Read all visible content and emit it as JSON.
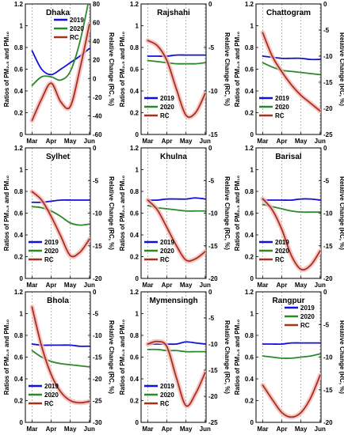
{
  "figure": {
    "left_axis_label": "Ratios of PM₂.₅ and PM₁₀",
    "right_axis_label": "Relative Change (RC, %)",
    "x_ticks": [
      "Mar",
      "Apr",
      "May",
      "Jun"
    ],
    "colors": {
      "2019": "#1010d8",
      "2020": "#2a8a2a",
      "RC": "#a83218",
      "RC_band": "#f4b8bc",
      "grid": "#9a9a9a"
    }
  },
  "chart_data": [
    {
      "title": "Dhaka",
      "type": "line",
      "categories": [
        "Mar",
        "Apr",
        "May",
        "Jun"
      ],
      "ylim_left": [
        0,
        1.2
      ],
      "yticks_left": [
        0,
        0.2,
        0.4,
        0.6,
        0.8,
        1,
        1.2
      ],
      "ylim_right": [
        -60,
        80
      ],
      "yticks_right": [
        -60,
        -40,
        -20,
        0,
        20,
        40,
        60,
        80
      ],
      "legend": "top-right",
      "series": [
        {
          "name": "2019",
          "axis": "left",
          "x": [
            0,
            0.5,
            1,
            1.5,
            2,
            2.5,
            3
          ],
          "y": [
            0.77,
            0.6,
            0.55,
            0.6,
            0.66,
            0.72,
            0.79
          ]
        },
        {
          "name": "2020",
          "axis": "left",
          "x": [
            0,
            0.5,
            1,
            1.5,
            2,
            2.5,
            3
          ],
          "y": [
            0.45,
            0.53,
            0.53,
            0.5,
            0.58,
            0.85,
            1.26
          ]
        },
        {
          "name": "RC",
          "axis": "right",
          "x": [
            0,
            0.5,
            1,
            1.5,
            2,
            2.5,
            3
          ],
          "y": [
            -45,
            -22,
            -5,
            -25,
            -30,
            10,
            58
          ]
        }
      ]
    },
    {
      "title": "Rajshahi",
      "type": "line",
      "categories": [
        "Mar",
        "Apr",
        "May",
        "Jun"
      ],
      "ylim_left": [
        0,
        1.2
      ],
      "yticks_left": [
        0,
        0.2,
        0.4,
        0.6,
        0.8,
        1,
        1.2
      ],
      "ylim_right": [
        -15,
        0
      ],
      "yticks_right": [
        -15,
        -10,
        -5,
        0
      ],
      "legend": "bottom-left",
      "series": [
        {
          "name": "2019",
          "axis": "left",
          "x": [
            0,
            0.5,
            1,
            1.5,
            2,
            2.5,
            3
          ],
          "y": [
            0.72,
            0.72,
            0.72,
            0.73,
            0.73,
            0.73,
            0.73
          ]
        },
        {
          "name": "2020",
          "axis": "left",
          "x": [
            0,
            0.5,
            1,
            1.5,
            2,
            2.5,
            3
          ],
          "y": [
            0.68,
            0.67,
            0.66,
            0.65,
            0.65,
            0.65,
            0.66
          ]
        },
        {
          "name": "RC",
          "axis": "right",
          "x": [
            0,
            0.5,
            1,
            1.5,
            2,
            2.5,
            3
          ],
          "y": [
            -4.2,
            -4.8,
            -6.5,
            -9.8,
            -12.8,
            -12.5,
            -10.3
          ]
        }
      ]
    },
    {
      "title": "Chattogram",
      "type": "line",
      "categories": [
        "Mar",
        "Apr",
        "May",
        "Jun"
      ],
      "ylim_left": [
        0,
        1.2
      ],
      "yticks_left": [
        0,
        0.2,
        0.4,
        0.6,
        0.8,
        1,
        1.2
      ],
      "ylim_right": [
        -25,
        0
      ],
      "yticks_right": [
        -25,
        -20,
        -15,
        -10,
        -5,
        0
      ],
      "legend": "bottom-left",
      "series": [
        {
          "name": "2019",
          "axis": "left",
          "x": [
            0,
            0.5,
            1,
            1.5,
            2,
            2.5,
            3
          ],
          "y": [
            0.72,
            0.71,
            0.7,
            0.7,
            0.7,
            0.69,
            0.69
          ]
        },
        {
          "name": "2020",
          "axis": "left",
          "x": [
            0,
            0.5,
            1,
            1.5,
            2,
            2.5,
            3
          ],
          "y": [
            0.66,
            0.62,
            0.59,
            0.58,
            0.57,
            0.56,
            0.55
          ]
        },
        {
          "name": "RC",
          "axis": "right",
          "x": [
            0,
            0.5,
            1,
            1.5,
            2,
            2.5,
            3
          ],
          "y": [
            -5.5,
            -10,
            -13,
            -15.5,
            -17.5,
            -19,
            -20.5
          ]
        }
      ]
    },
    {
      "title": "Sylhet",
      "type": "line",
      "categories": [
        "Mar",
        "Apr",
        "May",
        "Jun"
      ],
      "ylim_left": [
        0,
        1.2
      ],
      "yticks_left": [
        0,
        0.2,
        0.4,
        0.6,
        0.8,
        1,
        1.2
      ],
      "ylim_right": [
        -20,
        0
      ],
      "yticks_right": [
        -20,
        -15,
        -10,
        -5,
        0
      ],
      "legend": "bottom-left",
      "series": [
        {
          "name": "2019",
          "axis": "left",
          "x": [
            0,
            0.5,
            1,
            1.5,
            2,
            2.5,
            3
          ],
          "y": [
            0.7,
            0.7,
            0.71,
            0.72,
            0.72,
            0.72,
            0.72
          ]
        },
        {
          "name": "2020",
          "axis": "left",
          "x": [
            0,
            0.5,
            1,
            1.5,
            2,
            2.5,
            3
          ],
          "y": [
            0.66,
            0.65,
            0.62,
            0.57,
            0.51,
            0.49,
            0.5
          ]
        },
        {
          "name": "RC",
          "axis": "right",
          "x": [
            0,
            0.5,
            1,
            1.5,
            2,
            2.5,
            3
          ],
          "y": [
            -6.7,
            -8,
            -10.5,
            -13.5,
            -16.5,
            -16,
            -14
          ]
        }
      ]
    },
    {
      "title": "Khulna",
      "type": "line",
      "categories": [
        "Mar",
        "Apr",
        "May",
        "Jun"
      ],
      "ylim_left": [
        0,
        1.2
      ],
      "yticks_left": [
        0,
        0.2,
        0.4,
        0.6,
        0.8,
        1,
        1.2
      ],
      "ylim_right": [
        -20,
        0
      ],
      "yticks_right": [
        -20,
        -15,
        -10,
        -5,
        0
      ],
      "legend": "bottom-left",
      "series": [
        {
          "name": "2019",
          "axis": "left",
          "x": [
            0,
            0.5,
            1,
            1.5,
            2,
            2.5,
            3
          ],
          "y": [
            0.72,
            0.72,
            0.73,
            0.73,
            0.73,
            0.74,
            0.73
          ]
        },
        {
          "name": "2020",
          "axis": "left",
          "x": [
            0,
            0.5,
            1,
            1.5,
            2,
            2.5,
            3
          ],
          "y": [
            0.67,
            0.65,
            0.64,
            0.63,
            0.62,
            0.62,
            0.62
          ]
        },
        {
          "name": "RC",
          "axis": "right",
          "x": [
            0,
            0.5,
            1,
            1.5,
            2,
            2.5,
            3
          ],
          "y": [
            -8,
            -9.5,
            -12.2,
            -15,
            -17.2,
            -17,
            -15.9
          ]
        }
      ]
    },
    {
      "title": "Barisal",
      "type": "line",
      "categories": [
        "Mar",
        "Apr",
        "May",
        "Jun"
      ],
      "ylim_left": [
        0,
        1.2
      ],
      "yticks_left": [
        0,
        0.2,
        0.4,
        0.6,
        0.8,
        1,
        1.2
      ],
      "ylim_right": [
        -20,
        0
      ],
      "yticks_right": [
        -20,
        -15,
        -10,
        -5,
        0
      ],
      "legend": "bottom-left",
      "series": [
        {
          "name": "2019",
          "axis": "left",
          "x": [
            0,
            0.5,
            1,
            1.5,
            2,
            2.5,
            3
          ],
          "y": [
            0.72,
            0.72,
            0.72,
            0.72,
            0.73,
            0.73,
            0.72
          ]
        },
        {
          "name": "2020",
          "axis": "left",
          "x": [
            0,
            0.5,
            1,
            1.5,
            2,
            2.5,
            3
          ],
          "y": [
            0.68,
            0.66,
            0.64,
            0.62,
            0.61,
            0.61,
            0.61
          ]
        },
        {
          "name": "RC",
          "axis": "right",
          "x": [
            0,
            0.5,
            1,
            1.5,
            2,
            2.5,
            3
          ],
          "y": [
            -7.8,
            -9.5,
            -12.5,
            -16.5,
            -18.6,
            -18,
            -15.8
          ]
        }
      ]
    },
    {
      "title": "Bhola",
      "type": "line",
      "categories": [
        "Mar",
        "Apr",
        "May",
        "Jun"
      ],
      "ylim_left": [
        0,
        1.2
      ],
      "yticks_left": [
        0,
        0.2,
        0.4,
        0.6,
        0.8,
        1,
        1.2
      ],
      "ylim_right": [
        -30,
        0
      ],
      "yticks_right": [
        -30,
        -25,
        -20,
        -15,
        -10,
        -5,
        0
      ],
      "legend": "bottom-left",
      "series": [
        {
          "name": "2019",
          "axis": "left",
          "x": [
            0,
            0.5,
            1,
            1.5,
            2,
            2.5,
            3
          ],
          "y": [
            0.72,
            0.71,
            0.71,
            0.71,
            0.71,
            0.7,
            0.7
          ]
        },
        {
          "name": "2020",
          "axis": "left",
          "x": [
            0,
            0.5,
            1,
            1.5,
            2,
            2.5,
            3
          ],
          "y": [
            0.66,
            0.6,
            0.56,
            0.54,
            0.53,
            0.52,
            0.51
          ]
        },
        {
          "name": "RC",
          "axis": "right",
          "x": [
            0,
            0.5,
            1,
            1.5,
            2,
            2.5,
            3
          ],
          "y": [
            -3.5,
            -12.5,
            -19,
            -23,
            -25,
            -25.5,
            -25.2
          ]
        }
      ]
    },
    {
      "title": "Mymensingh",
      "type": "line",
      "categories": [
        "Mar",
        "Apr",
        "May",
        "Jun"
      ],
      "ylim_left": [
        0,
        1.2
      ],
      "yticks_left": [
        0,
        0.2,
        0.4,
        0.6,
        0.8,
        1,
        1.2
      ],
      "ylim_right": [
        -25,
        0
      ],
      "yticks_right": [
        -25,
        -20,
        -15,
        -10,
        -5,
        0
      ],
      "legend": "bottom-left",
      "series": [
        {
          "name": "2019",
          "axis": "left",
          "x": [
            0,
            0.5,
            1,
            1.5,
            2,
            2.5,
            3
          ],
          "y": [
            0.72,
            0.72,
            0.72,
            0.72,
            0.74,
            0.73,
            0.72
          ]
        },
        {
          "name": "2020",
          "axis": "left",
          "x": [
            0,
            0.5,
            1,
            1.5,
            2,
            2.5,
            3
          ],
          "y": [
            0.67,
            0.67,
            0.66,
            0.66,
            0.65,
            0.65,
            0.65
          ]
        },
        {
          "name": "RC",
          "axis": "right",
          "x": [
            0,
            0.5,
            1,
            1.5,
            2,
            2.5,
            3
          ],
          "y": [
            -10,
            -9.5,
            -10.5,
            -16.5,
            -21.8,
            -19.5,
            -15.5
          ]
        }
      ]
    },
    {
      "title": "Rangpur",
      "type": "line",
      "categories": [
        "Mar",
        "Apr",
        "May",
        "Jun"
      ],
      "ylim_left": [
        0,
        1.2
      ],
      "yticks_left": [
        0,
        0.2,
        0.4,
        0.6,
        0.8,
        1,
        1.2
      ],
      "ylim_right": [
        -20,
        0
      ],
      "yticks_right": [
        -20,
        -15,
        -10,
        -5,
        0
      ],
      "legend": "top-right",
      "series": [
        {
          "name": "2019",
          "axis": "left",
          "x": [
            0,
            0.5,
            1,
            1.5,
            2,
            2.5,
            3
          ],
          "y": [
            0.72,
            0.72,
            0.72,
            0.73,
            0.73,
            0.73,
            0.73
          ]
        },
        {
          "name": "2020",
          "axis": "left",
          "x": [
            0,
            0.5,
            1,
            1.5,
            2,
            2.5,
            3
          ],
          "y": [
            0.61,
            0.6,
            0.59,
            0.59,
            0.6,
            0.61,
            0.63
          ]
        },
        {
          "name": "RC",
          "axis": "right",
          "x": [
            0,
            0.5,
            1,
            1.5,
            2,
            2.5,
            3
          ],
          "y": [
            -14.3,
            -16.5,
            -18.5,
            -19.2,
            -18.5,
            -16.3,
            -12.8
          ]
        }
      ]
    }
  ]
}
